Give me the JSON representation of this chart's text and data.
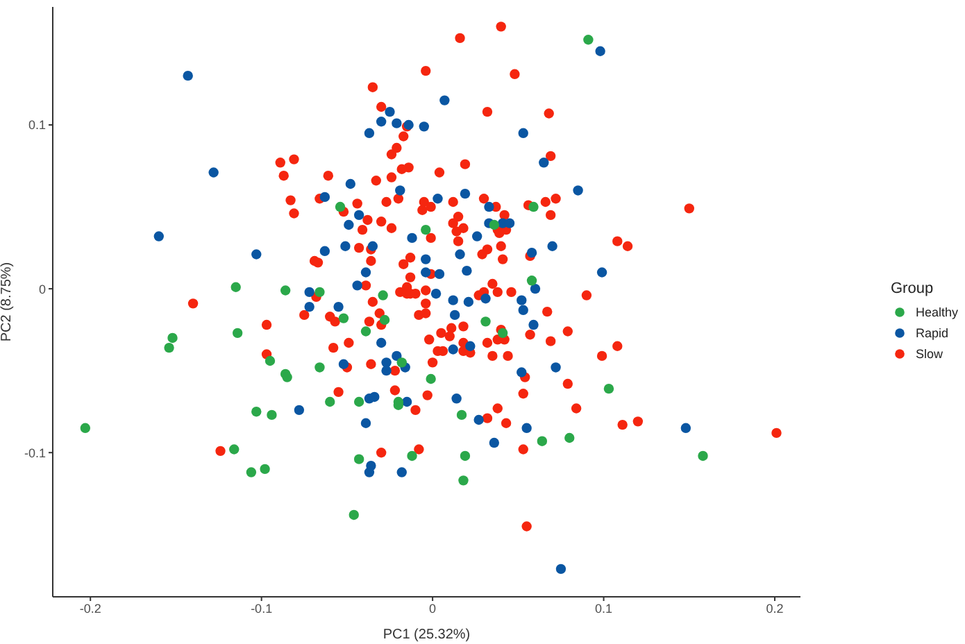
{
  "chart_data": {
    "type": "scatter",
    "xlabel": "PC1 (25.32%)",
    "ylabel": "PC2 (8.75%)",
    "legend_title": "Group",
    "legend": "right",
    "grid": false,
    "marker": "circle",
    "xlim": [
      -0.222,
      0.215
    ],
    "ylim": [
      -0.188,
      0.172
    ],
    "xticks": [
      -0.2,
      -0.1,
      0.0,
      0.1,
      0.2
    ],
    "yticks": [
      -0.1,
      0.0,
      0.1
    ],
    "series": [
      {
        "name": "Healthy",
        "color": "#2ba84a",
        "x": [
          -0.115,
          -0.086,
          -0.152,
          -0.154,
          -0.114,
          -0.095,
          -0.086,
          -0.085,
          -0.103,
          -0.094,
          -0.203,
          -0.116,
          -0.106,
          -0.098,
          0.091,
          0.103,
          0.08,
          0.158,
          -0.054,
          0.059,
          0.036,
          -0.004,
          0.058,
          -0.066,
          -0.029,
          -0.052,
          -0.028,
          0.031,
          -0.039,
          0.041,
          -0.066,
          -0.018,
          -0.001,
          -0.06,
          -0.043,
          -0.02,
          -0.02,
          0.017,
          0.064,
          -0.012,
          0.019,
          -0.043,
          0.018,
          -0.046
        ],
        "values": [
          0.001,
          -0.001,
          -0.03,
          -0.036,
          -0.027,
          -0.044,
          -0.052,
          -0.054,
          -0.075,
          -0.077,
          -0.085,
          -0.098,
          -0.112,
          -0.11,
          0.152,
          -0.061,
          -0.091,
          -0.102,
          0.05,
          0.05,
          0.039,
          0.036,
          0.005,
          -0.002,
          -0.004,
          -0.018,
          -0.019,
          -0.02,
          -0.026,
          -0.027,
          -0.048,
          -0.045,
          -0.055,
          -0.069,
          -0.069,
          -0.069,
          -0.071,
          -0.077,
          -0.093,
          -0.102,
          -0.102,
          -0.104,
          -0.117,
          -0.138
        ]
      },
      {
        "name": "Rapid",
        "color": "#0a56a2",
        "x": [
          -0.143,
          -0.128,
          -0.16,
          -0.103,
          -0.078,
          0.098,
          0.085,
          0.07,
          0.099,
          0.072,
          0.148,
          0.075,
          0.007,
          -0.025,
          -0.03,
          -0.021,
          -0.014,
          -0.005,
          -0.037,
          0.053,
          0.065,
          -0.048,
          -0.019,
          0.019,
          -0.063,
          0.003,
          0.033,
          -0.043,
          0.033,
          0.041,
          0.045,
          -0.049,
          -0.012,
          0.026,
          -0.051,
          -0.035,
          0.058,
          -0.063,
          -0.004,
          0.016,
          0.02,
          -0.039,
          -0.004,
          0.004,
          -0.044,
          0.06,
          -0.072,
          0.002,
          0.012,
          0.021,
          0.031,
          0.052,
          -0.055,
          -0.072,
          0.013,
          0.053,
          0.059,
          -0.03,
          0.022,
          0.012,
          -0.021,
          -0.052,
          -0.027,
          -0.027,
          -0.016,
          0.052,
          -0.037,
          -0.034,
          -0.015,
          0.014,
          0.027,
          -0.039,
          0.055,
          0.036,
          -0.036,
          -0.037,
          -0.018
        ],
        "values": [
          0.13,
          0.071,
          0.032,
          0.021,
          -0.074,
          0.145,
          0.06,
          0.026,
          0.01,
          -0.048,
          -0.085,
          -0.171,
          0.115,
          0.108,
          0.102,
          0.101,
          0.1,
          0.099,
          0.095,
          0.095,
          0.077,
          0.064,
          0.06,
          0.058,
          0.056,
          0.055,
          0.05,
          0.045,
          0.04,
          0.04,
          0.04,
          0.039,
          0.031,
          0.032,
          0.026,
          0.026,
          0.022,
          0.023,
          0.018,
          0.021,
          0.011,
          0.01,
          0.01,
          0.009,
          0.002,
          0.0,
          -0.002,
          -0.003,
          -0.007,
          -0.008,
          -0.006,
          -0.007,
          -0.011,
          -0.011,
          -0.016,
          -0.013,
          -0.022,
          -0.033,
          -0.035,
          -0.037,
          -0.041,
          -0.046,
          -0.045,
          -0.05,
          -0.048,
          -0.051,
          -0.067,
          -0.066,
          -0.069,
          -0.067,
          -0.08,
          -0.082,
          -0.085,
          -0.094,
          -0.108,
          -0.112,
          -0.112
        ]
      },
      {
        "name": "Slow",
        "color": "#f5260f",
        "x": [
          -0.089,
          -0.081,
          -0.087,
          -0.083,
          -0.081,
          -0.14,
          -0.075,
          -0.097,
          -0.097,
          -0.124,
          0.068,
          0.069,
          0.072,
          0.069,
          0.15,
          0.108,
          0.114,
          0.09,
          0.067,
          0.079,
          0.069,
          0.099,
          0.108,
          0.079,
          0.084,
          0.111,
          0.12,
          0.201,
          0.04,
          0.016,
          -0.004,
          0.048,
          -0.035,
          -0.03,
          0.032,
          -0.015,
          -0.017,
          -0.021,
          -0.024,
          0.019,
          -0.014,
          -0.018,
          0.004,
          -0.061,
          -0.024,
          -0.033,
          0.03,
          -0.066,
          -0.02,
          -0.027,
          -0.044,
          -0.005,
          0.012,
          0.066,
          0.037,
          0.056,
          -0.006,
          -0.001,
          -0.052,
          0.015,
          0.042,
          -0.038,
          -0.03,
          0.012,
          0.018,
          -0.041,
          -0.024,
          0.038,
          0.043,
          0.039,
          0.014,
          -0.001,
          0.015,
          -0.043,
          -0.036,
          0.032,
          0.04,
          0.029,
          0.057,
          -0.013,
          0.041,
          -0.069,
          -0.067,
          -0.036,
          -0.017,
          -0.013,
          -0.001,
          -0.039,
          0.035,
          -0.068,
          -0.035,
          -0.019,
          -0.015,
          -0.015,
          -0.013,
          -0.01,
          -0.004,
          -0.004,
          0.03,
          0.027,
          0.038,
          0.046,
          -0.06,
          -0.057,
          -0.037,
          -0.031,
          -0.03,
          -0.008,
          -0.004,
          0.005,
          0.011,
          0.01,
          0.018,
          0.04,
          0.038,
          0.042,
          0.057,
          -0.049,
          -0.058,
          -0.002,
          0.018,
          0.032,
          0.003,
          0.006,
          0.018,
          0.022,
          0.035,
          0.044,
          -0.05,
          -0.036,
          -0.022,
          0.0,
          0.054,
          -0.055,
          -0.022,
          -0.003,
          -0.01,
          0.053,
          0.038,
          0.032,
          0.043,
          0.053,
          -0.03,
          -0.008,
          0.055
        ],
        "values": [
          0.077,
          0.079,
          0.069,
          0.054,
          0.046,
          -0.009,
          -0.016,
          -0.022,
          -0.04,
          -0.099,
          0.107,
          0.081,
          0.055,
          0.045,
          0.049,
          0.029,
          0.026,
          -0.004,
          -0.014,
          -0.026,
          -0.032,
          -0.041,
          -0.035,
          -0.058,
          -0.073,
          -0.083,
          -0.081,
          -0.088,
          0.16,
          0.153,
          0.133,
          0.131,
          0.123,
          0.111,
          0.108,
          0.099,
          0.093,
          0.086,
          0.082,
          0.076,
          0.074,
          0.073,
          0.071,
          0.069,
          0.068,
          0.066,
          0.055,
          0.055,
          0.055,
          0.053,
          0.052,
          0.053,
          0.053,
          0.053,
          0.05,
          0.051,
          0.048,
          0.05,
          0.047,
          0.044,
          0.045,
          0.042,
          0.041,
          0.04,
          0.037,
          0.036,
          0.037,
          0.036,
          0.036,
          0.034,
          0.035,
          0.031,
          0.029,
          0.025,
          0.024,
          0.024,
          0.026,
          0.021,
          0.02,
          0.019,
          0.018,
          0.017,
          0.016,
          0.017,
          0.015,
          0.007,
          0.009,
          0.002,
          0.003,
          -0.005,
          -0.008,
          -0.002,
          0.001,
          -0.003,
          -0.003,
          -0.003,
          -0.001,
          -0.009,
          -0.002,
          -0.004,
          -0.002,
          -0.002,
          -0.017,
          -0.02,
          -0.02,
          -0.015,
          -0.022,
          -0.016,
          -0.015,
          -0.027,
          -0.024,
          -0.029,
          -0.023,
          -0.025,
          -0.031,
          -0.031,
          -0.028,
          -0.033,
          -0.036,
          -0.031,
          -0.033,
          -0.033,
          -0.038,
          -0.038,
          -0.038,
          -0.039,
          -0.041,
          -0.041,
          -0.048,
          -0.046,
          -0.05,
          -0.045,
          -0.054,
          -0.063,
          -0.062,
          -0.065,
          -0.074,
          -0.064,
          -0.073,
          -0.079,
          -0.082,
          -0.098,
          -0.1,
          -0.098,
          -0.145
        ]
      }
    ]
  }
}
